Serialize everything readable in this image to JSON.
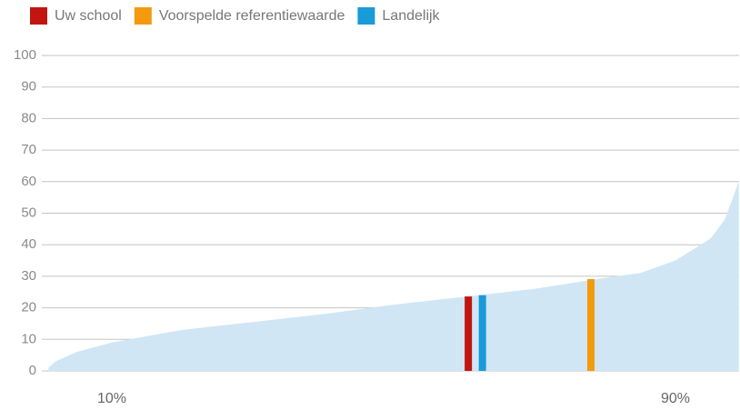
{
  "chart_data": {
    "type": "area",
    "x": [
      1,
      2,
      5,
      10,
      20,
      30,
      40,
      50,
      60,
      70,
      80,
      85,
      90,
      95,
      97,
      99
    ],
    "values": [
      1,
      3,
      6,
      9,
      13,
      15.5,
      18,
      21,
      23.5,
      26,
      29.5,
      31,
      35,
      42,
      48,
      60
    ],
    "color": "#d0e6f5",
    "series": [
      {
        "name": "Uw school",
        "color": "#c0160f",
        "x": [
          60.6
        ],
        "values": [
          23.6
        ]
      },
      {
        "name": "Voorspelde referentiewaarde",
        "color": "#f39a0e",
        "x": [
          78
        ],
        "values": [
          29.1
        ]
      },
      {
        "name": "Landelijk",
        "color": "#1a9ad8",
        "x": [
          62.6
        ],
        "values": [
          24
        ]
      }
    ],
    "xlim": [
      0,
      100
    ],
    "xticks": [
      {
        "value": 10,
        "label": "10%"
      },
      {
        "value": 90,
        "label": "90%"
      }
    ],
    "ylim": [
      0,
      100
    ],
    "yticks": [
      0,
      10,
      20,
      30,
      40,
      50,
      60,
      70,
      80,
      90,
      100
    ],
    "grid": true
  }
}
